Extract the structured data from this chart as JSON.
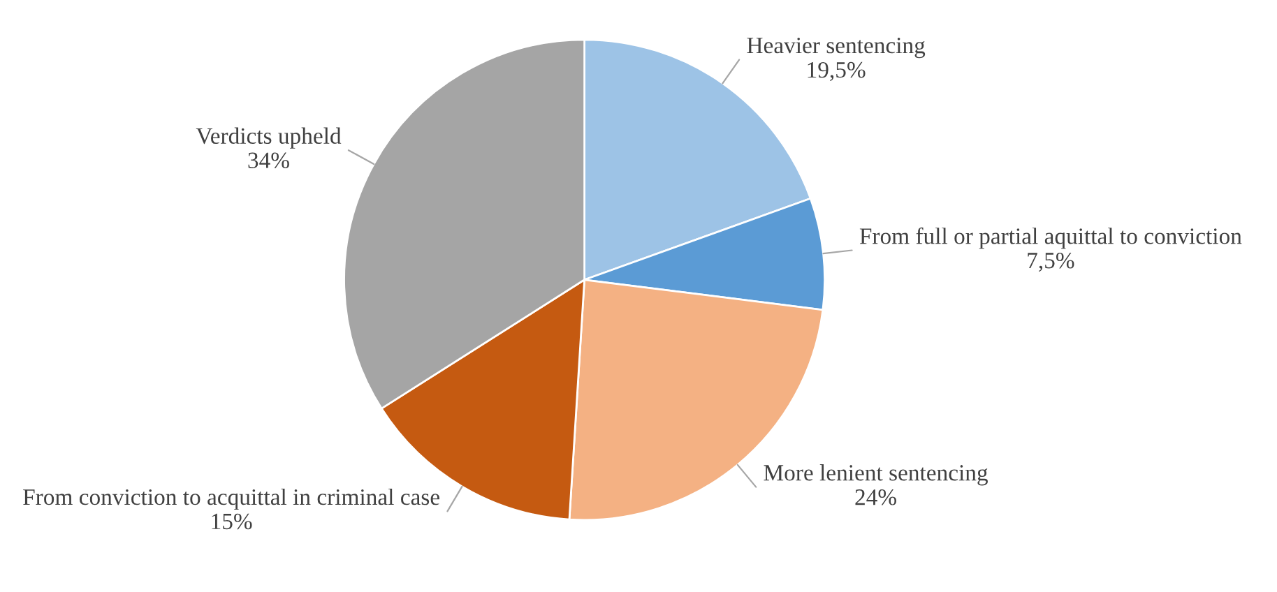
{
  "chart_data": {
    "type": "pie",
    "categories": [
      "Heavier sentencing",
      "From full or partial aquittal to conviction",
      "More lenient sentencing",
      "From conviction to acquittal in criminal case",
      "Verdicts upheld"
    ],
    "values": [
      19.5,
      7.5,
      24,
      15,
      34
    ],
    "value_labels": [
      "19,5%",
      "7,5%",
      "24%",
      "15%",
      "34%"
    ],
    "colors": [
      "#9dc3e6",
      "#5b9bd5",
      "#f4b183",
      "#c55a11",
      "#a5a5a5"
    ],
    "legend": false
  }
}
